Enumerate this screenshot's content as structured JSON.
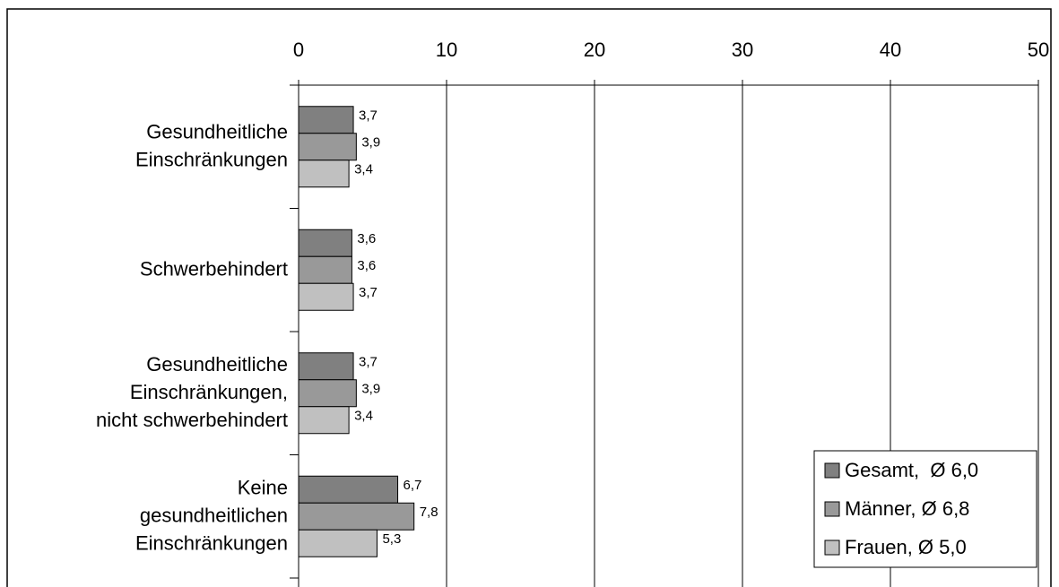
{
  "chart_data": {
    "type": "hbar",
    "categories": [
      "Gesundheitliche\nEinschränkungen",
      "Schwerbehindert",
      "Gesundheitliche\nEinschränkungen,\nnicht schwerbehindert",
      "Keine\ngesundheitlichen\nEinschränkungen"
    ],
    "series": [
      {
        "name": "Gesamt,  Ø 6,0",
        "color": "#808080",
        "values": [
          3.7,
          3.6,
          3.7,
          6.7
        ],
        "value_labels": [
          "3,7",
          "3,6",
          "3,7",
          "6,7"
        ]
      },
      {
        "name": "Männer, Ø 6,8",
        "color": "#999999",
        "values": [
          3.9,
          3.6,
          3.9,
          7.8
        ],
        "value_labels": [
          "3,9",
          "3,6",
          "3,9",
          "7,8"
        ]
      },
      {
        "name": "Frauen, Ø 5,0",
        "color": "#c0c0c0",
        "values": [
          3.4,
          3.7,
          3.4,
          5.3
        ],
        "value_labels": [
          "3,4",
          "3,7",
          "3,4",
          "5,3"
        ]
      }
    ],
    "xlim": [
      0,
      50
    ],
    "xticks": [
      0,
      10,
      20,
      30,
      40,
      50
    ],
    "grid": true,
    "legend": "bottom-right"
  }
}
